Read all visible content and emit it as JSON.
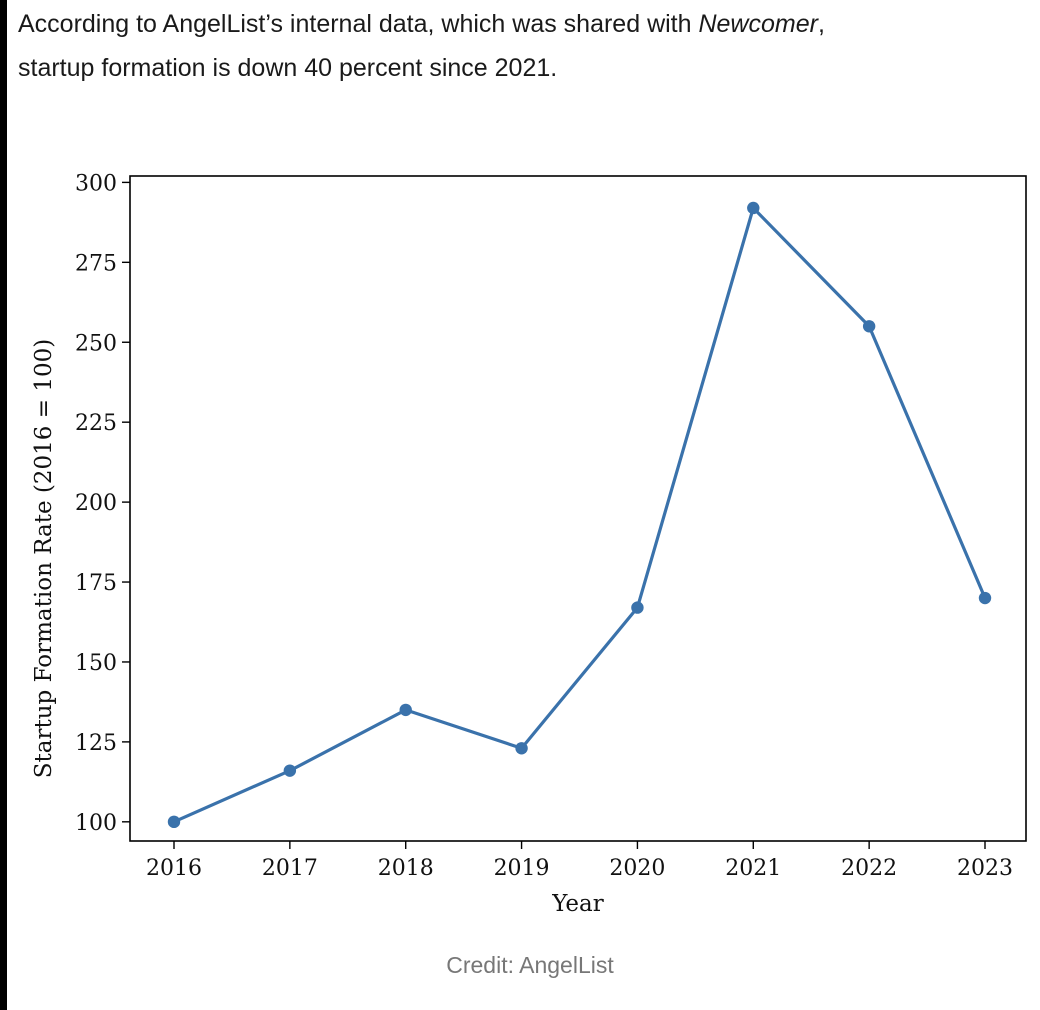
{
  "article": {
    "line1_prefix": "According to AngelList’s internal data, which was shared with ",
    "line1_italic": "Newcomer",
    "line1_suffix": ",",
    "line2": "startup formation is down 40 percent since 2021."
  },
  "credit": "Credit: AngelList",
  "colors": {
    "series": "#3a72ab",
    "axis": "#000000",
    "text": "#1a1a1a",
    "credit": "#777777"
  },
  "chart_data": {
    "type": "line",
    "title": "",
    "xlabel": "Year",
    "ylabel": "Startup Formation Rate (2016 = 100)",
    "x": [
      2016,
      2017,
      2018,
      2019,
      2020,
      2021,
      2022,
      2023
    ],
    "values": [
      100,
      116,
      135,
      123,
      167,
      292,
      255,
      170
    ],
    "ylim": [
      94,
      302
    ],
    "yticks": [
      100,
      125,
      150,
      175,
      200,
      225,
      250,
      275,
      300
    ],
    "ytick_labels": [
      "100",
      "125",
      "150",
      "175",
      "200",
      "225",
      "250",
      "275",
      "300"
    ],
    "xtick_labels": [
      "2016",
      "2017",
      "2018",
      "2019",
      "2020",
      "2021",
      "2022",
      "2023"
    ],
    "grid": false,
    "legend": "none",
    "markers": true
  }
}
